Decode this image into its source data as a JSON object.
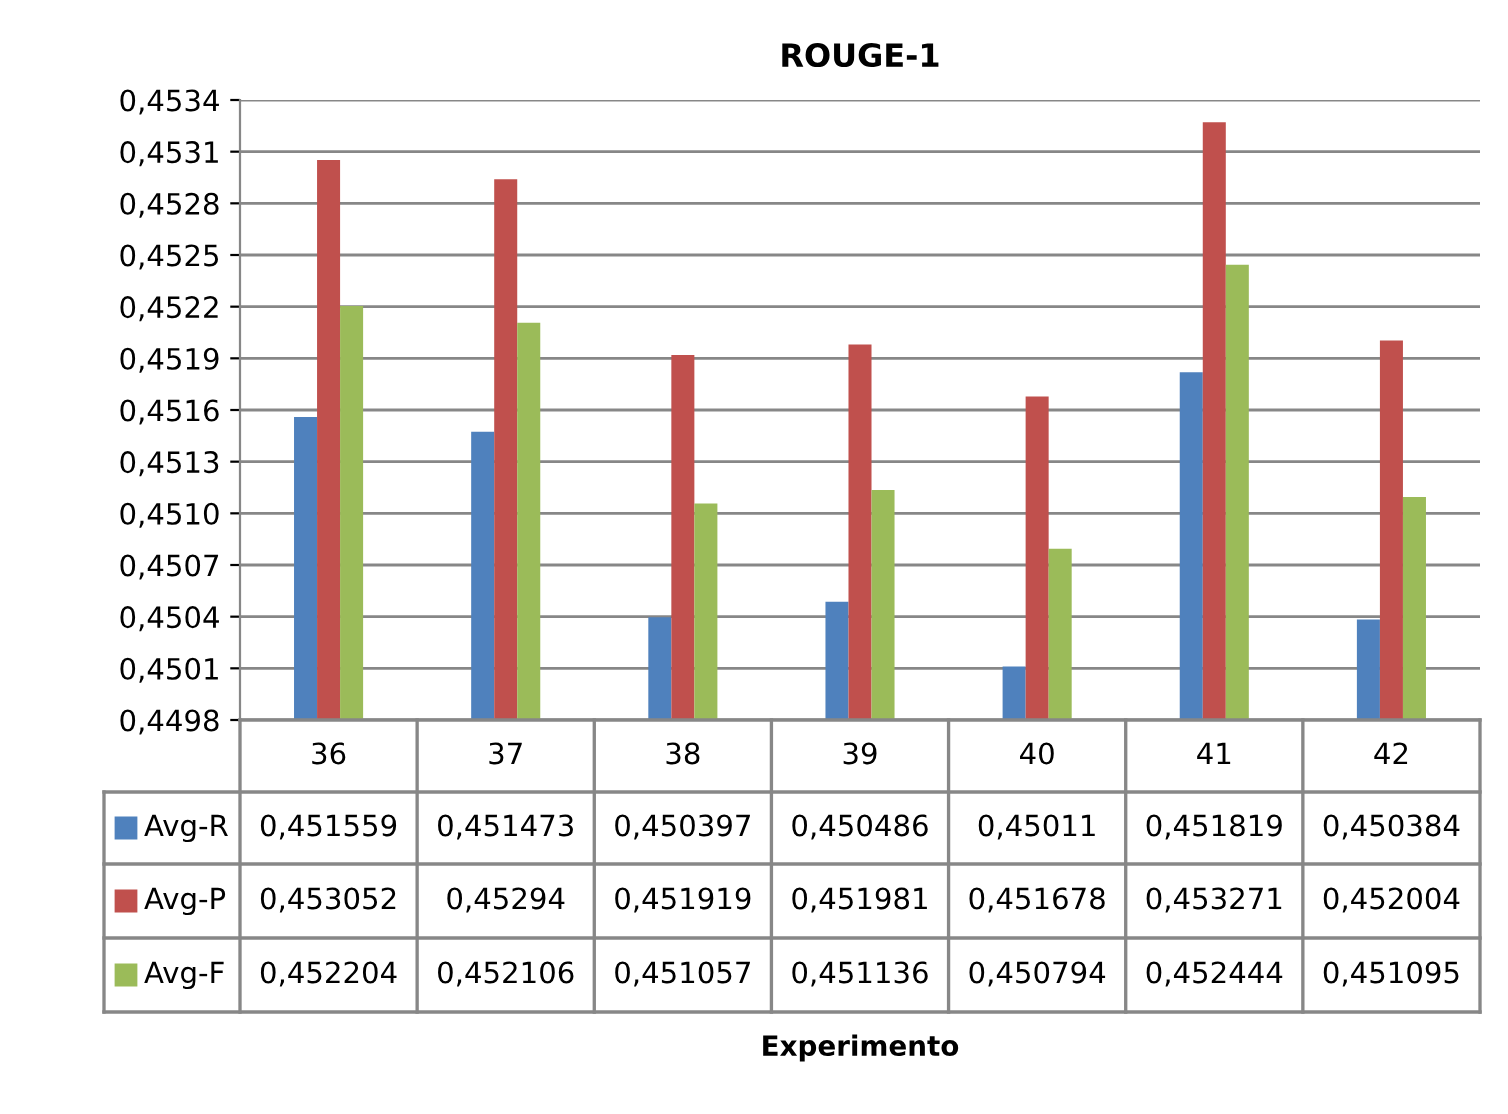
{
  "chart_data": {
    "type": "bar",
    "title": "ROUGE-1",
    "annotations": [
      "Experimento"
    ],
    "categories": [
      "36",
      "37",
      "38",
      "39",
      "40",
      "41",
      "42"
    ],
    "series": [
      {
        "name": "Avg-R",
        "color": "#4f81bd",
        "values": [
          0.451559,
          0.451473,
          0.450397,
          0.450486,
          0.45011,
          0.451819,
          0.450384
        ],
        "value_labels": [
          "0,451559",
          "0,451473",
          "0,450397",
          "0,450486",
          "0,45011",
          "0,451819",
          "0,450384"
        ]
      },
      {
        "name": "Avg-P",
        "color": "#c0504d",
        "values": [
          0.453052,
          0.45294,
          0.451919,
          0.451981,
          0.451678,
          0.453271,
          0.452004
        ],
        "value_labels": [
          "0,453052",
          "0,45294",
          "0,451919",
          "0,451981",
          "0,451678",
          "0,453271",
          "0,452004"
        ]
      },
      {
        "name": "Avg-F",
        "color": "#9bbb59",
        "values": [
          0.452204,
          0.452106,
          0.451057,
          0.451136,
          0.450794,
          0.452444,
          0.451095
        ],
        "value_labels": [
          "0,452204",
          "0,452106",
          "0,451057",
          "0,451136",
          "0,450794",
          "0,452444",
          "0,451095"
        ]
      }
    ],
    "ylim": [
      0.4498,
      0.4534
    ],
    "yticks": [
      {
        "value": 0.4498,
        "label": "0,4498"
      },
      {
        "value": 0.4501,
        "label": "0,4501"
      },
      {
        "value": 0.4504,
        "label": "0,4504"
      },
      {
        "value": 0.4507,
        "label": "0,4507"
      },
      {
        "value": 0.451,
        "label": "0,4510"
      },
      {
        "value": 0.4513,
        "label": "0,4513"
      },
      {
        "value": 0.4516,
        "label": "0,4516"
      },
      {
        "value": 0.4519,
        "label": "0,4519"
      },
      {
        "value": 0.4522,
        "label": "0,4522"
      },
      {
        "value": 0.4525,
        "label": "0,4525"
      },
      {
        "value": 0.4528,
        "label": "0,4528"
      },
      {
        "value": 0.4531,
        "label": "0,4531"
      },
      {
        "value": 0.4534,
        "label": "0,4534"
      }
    ],
    "grid": "y",
    "legend": "bottom"
  }
}
